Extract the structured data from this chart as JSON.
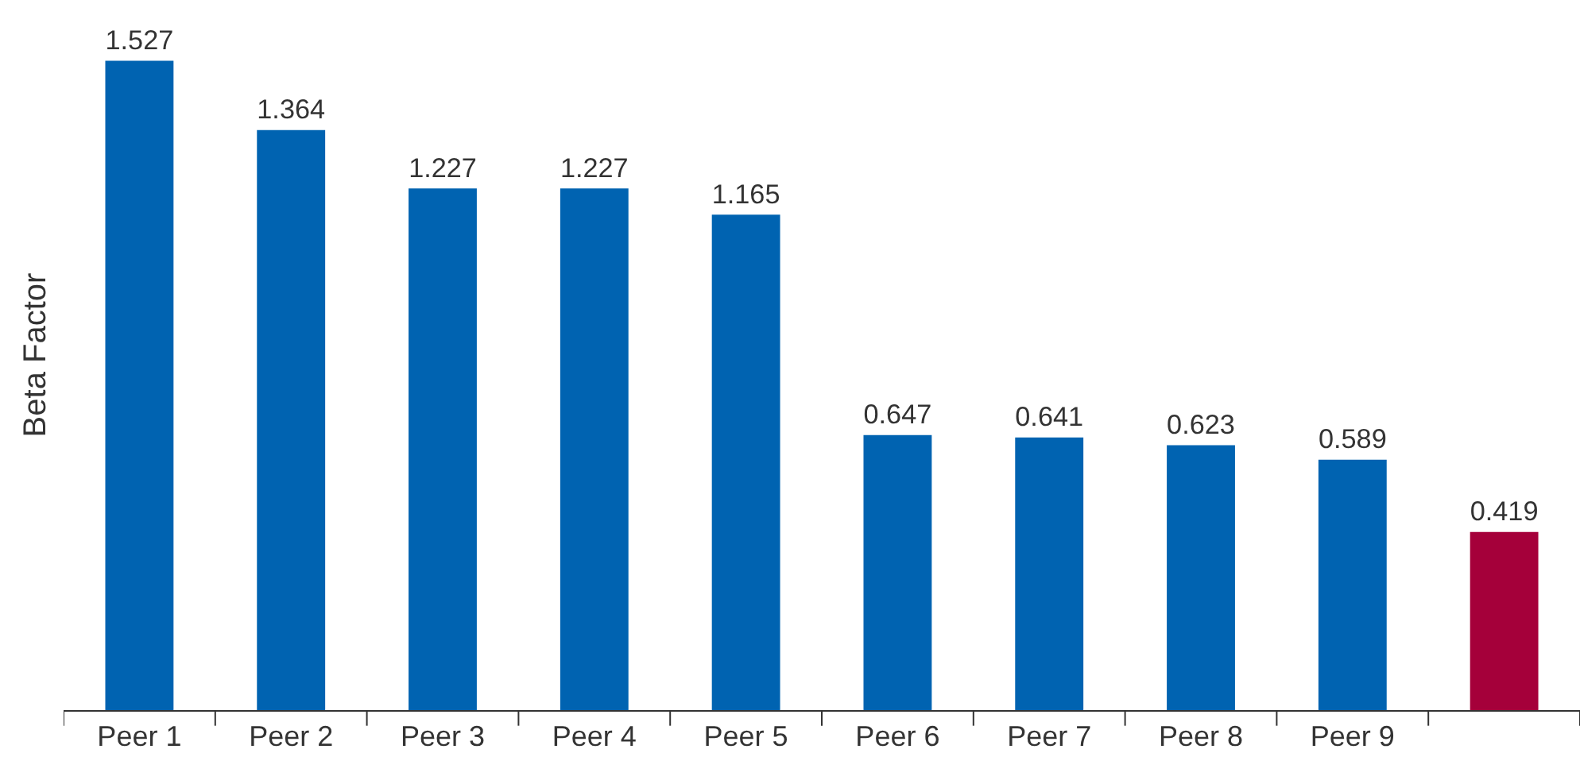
{
  "chart_data": {
    "type": "bar",
    "ylabel": "Beta Factor",
    "categories": [
      "Peer 1",
      "Peer 2",
      "Peer 3",
      "Peer 4",
      "Peer 5",
      "Peer 6",
      "Peer 7",
      "Peer 8",
      "Peer 9",
      null
    ],
    "values": [
      1.527,
      1.364,
      1.227,
      1.227,
      1.165,
      0.647,
      0.641,
      0.623,
      0.589,
      0.419
    ],
    "colors": [
      "#0063b1",
      "#0063b1",
      "#0063b1",
      "#0063b1",
      "#0063b1",
      "#0063b1",
      "#0063b1",
      "#0063b1",
      "#0063b1",
      "#a5003a"
    ],
    "ylim": [
      0,
      1.67
    ],
    "data_labels": true,
    "tick_labels": "x"
  }
}
